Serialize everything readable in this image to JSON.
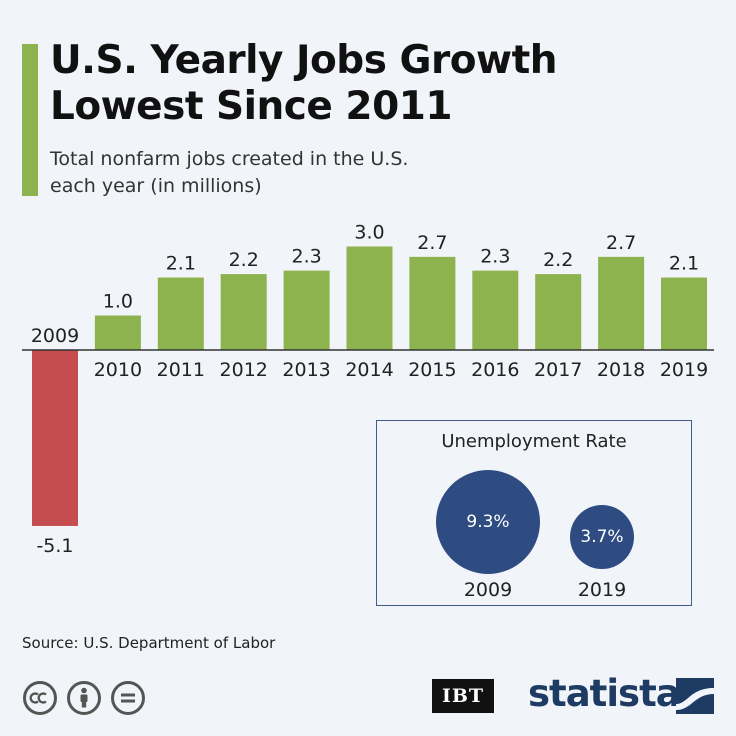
{
  "title_line1": "U.S. Yearly Jobs Growth",
  "title_line2": "Lowest Since 2011",
  "subtitle_line1": "Total nonfarm jobs created in the U.S.",
  "subtitle_line2": "each year (in millions)",
  "chart_data": {
    "type": "bar",
    "title": "U.S. Yearly Jobs Growth Lowest Since 2011",
    "subtitle": "Total nonfarm jobs created in the U.S. each year (in millions)",
    "categories": [
      "2009",
      "2010",
      "2011",
      "2012",
      "2013",
      "2014",
      "2015",
      "2016",
      "2017",
      "2018",
      "2019"
    ],
    "values": [
      -5.1,
      1.0,
      2.1,
      2.2,
      2.3,
      3.0,
      2.7,
      2.3,
      2.2,
      2.7,
      2.1
    ],
    "value_labels": [
      "-5.1",
      "1.0",
      "2.1",
      "2.2",
      "2.3",
      "3.0",
      "2.7",
      "2.3",
      "2.2",
      "2.7",
      "2.1"
    ],
    "ylim": [
      -5.1,
      3.0
    ],
    "xlabel": "",
    "ylabel": "",
    "grid": false,
    "colors": {
      "positive": "#8db34f",
      "negative": "#c64d4f"
    }
  },
  "unemployment": {
    "title": "Unemployment Rate",
    "items": [
      {
        "year": "2009",
        "value": 9.3,
        "label": "9.3%"
      },
      {
        "year": "2019",
        "value": 3.7,
        "label": "3.7%"
      }
    ]
  },
  "source": "Source: U.S. Department of Labor",
  "branding": {
    "ibt": "IBT",
    "statista": "statista"
  },
  "colors": {
    "accent": "#8db34f",
    "bubble": "#2e4c82",
    "brand": "#1d3b63"
  },
  "icons": [
    "creative-commons-icon",
    "attribution-person-icon",
    "no-derivatives-equals-icon",
    "statista-logo-icon"
  ]
}
